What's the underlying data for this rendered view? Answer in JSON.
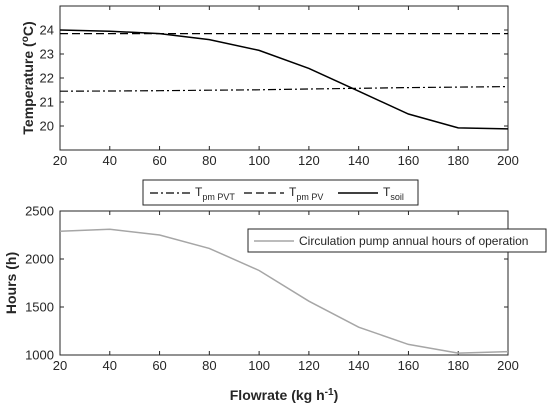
{
  "chart_data": [
    {
      "type": "line",
      "ylabel_main": "Temperature (",
      "ylabel_sup": "o",
      "ylabel_tail": "C)",
      "x": [
        20,
        40,
        60,
        80,
        100,
        120,
        140,
        160,
        180,
        200
      ],
      "xlim": [
        20,
        200
      ],
      "ylim": [
        19,
        25
      ],
      "xticks": [
        "20",
        "40",
        "60",
        "80",
        "100",
        "120",
        "140",
        "160",
        "180",
        "200"
      ],
      "yticks": [
        20,
        21,
        22,
        23,
        24
      ],
      "ytick_labels": [
        "20",
        "21",
        "22",
        "23",
        "24"
      ],
      "grid": false,
      "legend_placement": "below-axes",
      "series": [
        {
          "name_main": "T",
          "name_sub": "pm PVT",
          "style": "dashdot",
          "color": "#000000",
          "values": [
            21.45,
            21.46,
            21.47,
            21.49,
            21.51,
            21.54,
            21.57,
            21.6,
            21.62,
            21.64
          ]
        },
        {
          "name_main": "T",
          "name_sub": "pm PV",
          "style": "dashed",
          "color": "#000000",
          "values": [
            23.85,
            23.85,
            23.85,
            23.85,
            23.85,
            23.85,
            23.85,
            23.85,
            23.85,
            23.85
          ]
        },
        {
          "name_main": "T",
          "name_sub": "soil",
          "style": "solid",
          "color": "#000000",
          "values": [
            24.0,
            23.95,
            23.85,
            23.6,
            23.15,
            22.4,
            21.45,
            20.5,
            19.92,
            19.88
          ]
        }
      ]
    },
    {
      "type": "line",
      "ylabel": "Hours (h)",
      "xlabel_main": "Flowrate (kg h",
      "xlabel_sup": "-1",
      "xlabel_tail": ")",
      "x": [
        20,
        40,
        60,
        80,
        100,
        120,
        140,
        160,
        180,
        200
      ],
      "xlim": [
        20,
        200
      ],
      "ylim": [
        1000,
        2500
      ],
      "xticks": [
        "20",
        "40",
        "60",
        "80",
        "100",
        "120",
        "140",
        "160",
        "180",
        "200"
      ],
      "yticks": [
        1000,
        1500,
        2000,
        2500
      ],
      "ytick_labels": [
        "1000",
        "1500",
        "2000",
        "2500"
      ],
      "grid": false,
      "legend_placement": "top-right",
      "series": [
        {
          "name": "Circulation pump annual hours of operation",
          "style": "solid",
          "color": "#a6a6a6",
          "values": [
            2290,
            2310,
            2250,
            2110,
            1880,
            1560,
            1290,
            1110,
            1020,
            1035
          ]
        }
      ]
    }
  ]
}
